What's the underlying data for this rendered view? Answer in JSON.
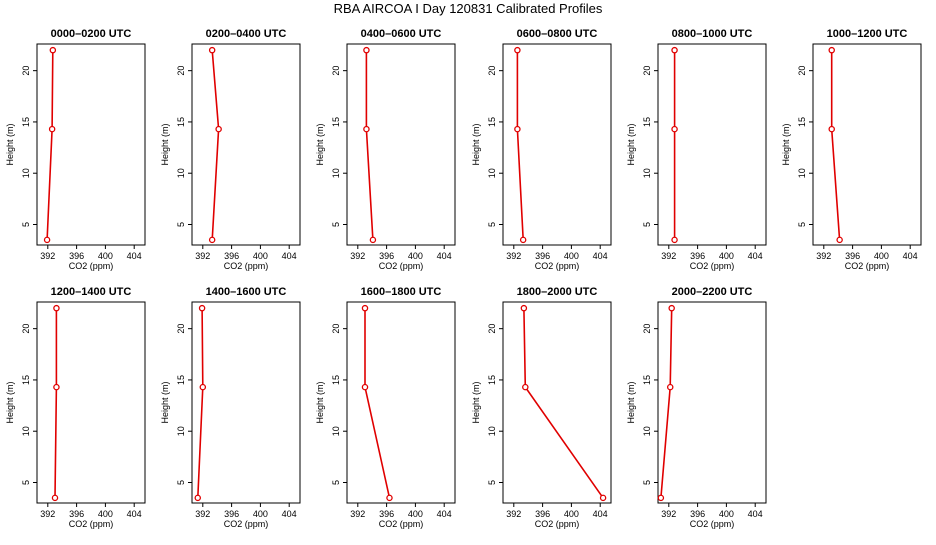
{
  "title": "RBA AIRCOA I  Day 120831  Calibrated Profiles",
  "chart_data": [
    {
      "type": "line",
      "title": "0000–0200 UTC",
      "xlabel": "CO2 (ppm)",
      "ylabel": "Height (m)",
      "xlim": [
        390.5,
        405.5
      ],
      "ylim": [
        3,
        22.6
      ],
      "xticks": [
        392,
        396,
        400,
        404
      ],
      "yticks": [
        5,
        10,
        15,
        20
      ],
      "series": [
        {
          "x": [
            391.9,
            392.6,
            392.7
          ],
          "y": [
            3.5,
            14.3,
            22.0
          ]
        }
      ]
    },
    {
      "type": "line",
      "title": "0200–0400 UTC",
      "xlabel": "CO2 (ppm)",
      "ylabel": "Height (m)",
      "xlim": [
        390.5,
        405.5
      ],
      "ylim": [
        3,
        22.6
      ],
      "xticks": [
        392,
        396,
        400,
        404
      ],
      "yticks": [
        5,
        10,
        15,
        20
      ],
      "series": [
        {
          "x": [
            393.3,
            394.2,
            393.3
          ],
          "y": [
            3.5,
            14.3,
            22.0
          ]
        }
      ]
    },
    {
      "type": "line",
      "title": "0400–0600 UTC",
      "xlabel": "CO2 (ppm)",
      "ylabel": "Height (m)",
      "xlim": [
        390.5,
        405.5
      ],
      "ylim": [
        3,
        22.6
      ],
      "xticks": [
        392,
        396,
        400,
        404
      ],
      "yticks": [
        5,
        10,
        15,
        20
      ],
      "series": [
        {
          "x": [
            394.1,
            393.2,
            393.2
          ],
          "y": [
            3.5,
            14.3,
            22.0
          ]
        }
      ]
    },
    {
      "type": "line",
      "title": "0600–0800 UTC",
      "xlabel": "CO2 (ppm)",
      "ylabel": "Height (m)",
      "xlim": [
        390.5,
        405.5
      ],
      "ylim": [
        3,
        22.6
      ],
      "xticks": [
        392,
        396,
        400,
        404
      ],
      "yticks": [
        5,
        10,
        15,
        20
      ],
      "series": [
        {
          "x": [
            393.3,
            392.5,
            392.5
          ],
          "y": [
            3.5,
            14.3,
            22.0
          ]
        }
      ]
    },
    {
      "type": "line",
      "title": "0800–1000 UTC",
      "xlabel": "CO2 (ppm)",
      "ylabel": "Height (m)",
      "xlim": [
        390.5,
        405.5
      ],
      "ylim": [
        3,
        22.6
      ],
      "xticks": [
        392,
        396,
        400,
        404
      ],
      "yticks": [
        5,
        10,
        15,
        20
      ],
      "series": [
        {
          "x": [
            392.8,
            392.8,
            392.8
          ],
          "y": [
            3.5,
            14.3,
            22.0
          ]
        }
      ]
    },
    {
      "type": "line",
      "title": "1000–1200 UTC",
      "xlabel": "CO2 (ppm)",
      "ylabel": "Height (m)",
      "xlim": [
        390.5,
        405.5
      ],
      "ylim": [
        3,
        22.6
      ],
      "xticks": [
        392,
        396,
        400,
        404
      ],
      "yticks": [
        5,
        10,
        15,
        20
      ],
      "series": [
        {
          "x": [
            394.2,
            393.1,
            393.1
          ],
          "y": [
            3.5,
            14.3,
            22.0
          ]
        }
      ]
    },
    {
      "type": "line",
      "title": "1200–1400 UTC",
      "xlabel": "CO2 (ppm)",
      "ylabel": "Height (m)",
      "xlim": [
        390.5,
        405.5
      ],
      "ylim": [
        3,
        22.6
      ],
      "xticks": [
        392,
        396,
        400,
        404
      ],
      "yticks": [
        5,
        10,
        15,
        20
      ],
      "series": [
        {
          "x": [
            393.0,
            393.2,
            393.2
          ],
          "y": [
            3.5,
            14.3,
            22.0
          ]
        }
      ]
    },
    {
      "type": "line",
      "title": "1400–1600 UTC",
      "xlabel": "CO2 (ppm)",
      "ylabel": "Height (m)",
      "xlim": [
        390.5,
        405.5
      ],
      "ylim": [
        3,
        22.6
      ],
      "xticks": [
        392,
        396,
        400,
        404
      ],
      "yticks": [
        5,
        10,
        15,
        20
      ],
      "series": [
        {
          "x": [
            391.3,
            392.0,
            391.9
          ],
          "y": [
            3.5,
            14.3,
            22.0
          ]
        }
      ]
    },
    {
      "type": "line",
      "title": "1600–1800 UTC",
      "xlabel": "CO2 (ppm)",
      "ylabel": "Height (m)",
      "xlim": [
        390.5,
        405.5
      ],
      "ylim": [
        3,
        22.6
      ],
      "xticks": [
        392,
        396,
        400,
        404
      ],
      "yticks": [
        5,
        10,
        15,
        20
      ],
      "series": [
        {
          "x": [
            396.4,
            393.0,
            393.0
          ],
          "y": [
            3.5,
            14.3,
            22.0
          ]
        }
      ]
    },
    {
      "type": "line",
      "title": "1800–2000 UTC",
      "xlabel": "CO2 (ppm)",
      "ylabel": "Height (m)",
      "xlim": [
        390.5,
        405.5
      ],
      "ylim": [
        3,
        22.6
      ],
      "xticks": [
        392,
        396,
        400,
        404
      ],
      "yticks": [
        5,
        10,
        15,
        20
      ],
      "series": [
        {
          "x": [
            404.4,
            393.6,
            393.4
          ],
          "y": [
            3.5,
            14.3,
            22.0
          ]
        }
      ]
    },
    {
      "type": "line",
      "title": "2000–2200 UTC",
      "xlabel": "CO2 (ppm)",
      "ylabel": "Height (m)",
      "xlim": [
        390.5,
        405.5
      ],
      "ylim": [
        3,
        22.6
      ],
      "xticks": [
        392,
        396,
        400,
        404
      ],
      "yticks": [
        5,
        10,
        15,
        20
      ],
      "series": [
        {
          "x": [
            390.9,
            392.2,
            392.4
          ],
          "y": [
            3.5,
            14.3,
            22.0
          ]
        }
      ]
    }
  ],
  "colors": {
    "series_line": "#e00000",
    "axis": "#000000"
  }
}
